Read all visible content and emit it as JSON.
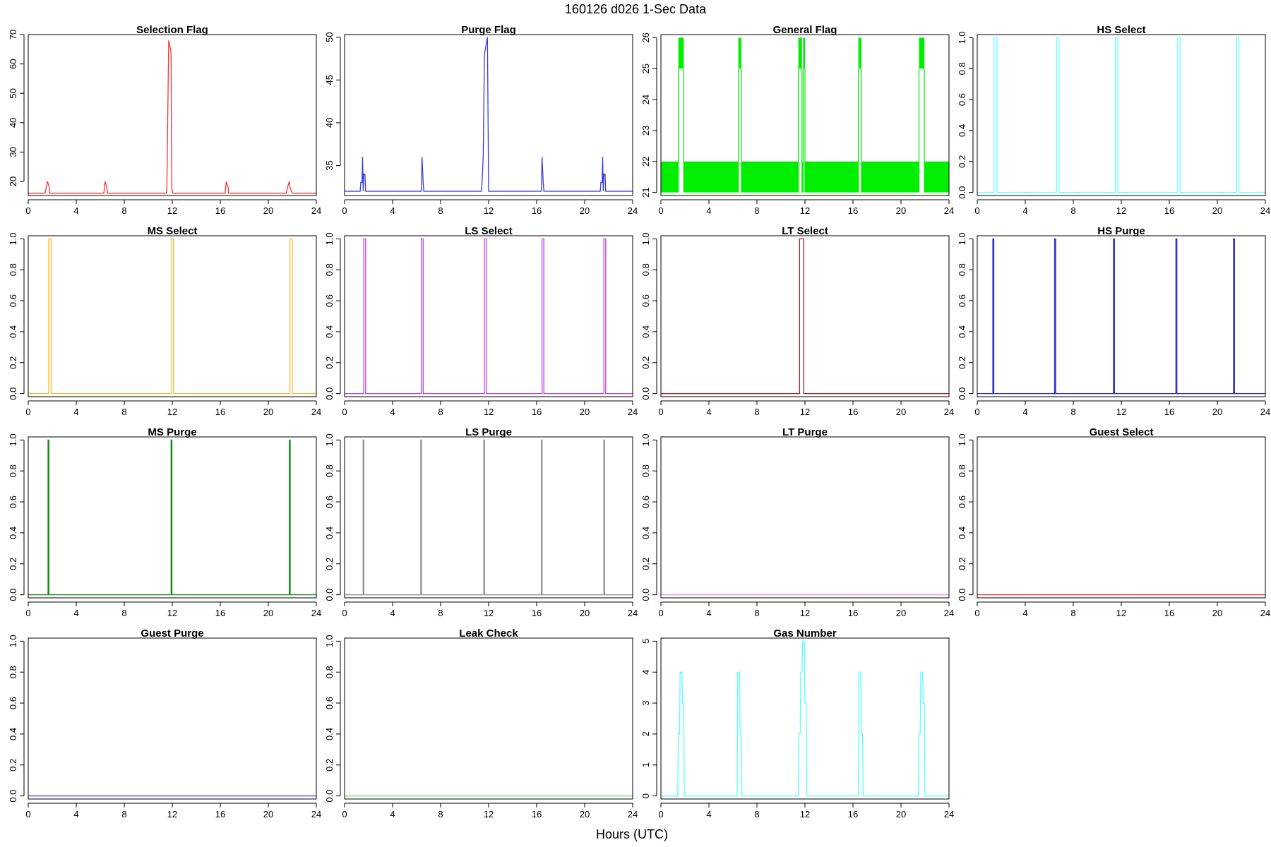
{
  "figure": {
    "title": "160126   d026   1-Sec Data",
    "xlabel": "Hours (UTC)",
    "x_ticks": [
      0,
      4,
      8,
      12,
      16,
      20,
      24
    ]
  },
  "chart_data": [
    {
      "name": "selection-flag",
      "type": "line",
      "title": "Selection Flag",
      "color": "#ff3030",
      "xlim": [
        0,
        24
      ],
      "ylim": [
        15.2,
        70
      ],
      "yticks": [
        20,
        30,
        40,
        50,
        60,
        70
      ],
      "x": [
        0,
        1.4,
        1.5,
        1.6,
        1.75,
        1.8,
        2.0,
        6.3,
        6.4,
        6.55,
        6.6,
        11.5,
        11.55,
        11.7,
        11.9,
        11.95,
        12.05,
        16.4,
        16.5,
        16.65,
        16.7,
        21.5,
        21.6,
        21.75,
        21.8,
        22.0,
        24
      ],
      "y": [
        16,
        16,
        18,
        20,
        18,
        16,
        16,
        16,
        20,
        18,
        16,
        16,
        18,
        68,
        64,
        18,
        16,
        16,
        20,
        18,
        16,
        16,
        18,
        20,
        18,
        16,
        16
      ]
    },
    {
      "name": "purge-flag",
      "type": "line",
      "title": "Purge Flag",
      "color": "#3a3ae0",
      "xlim": [
        0,
        24
      ],
      "ylim": [
        31.5,
        50.3
      ],
      "yticks": [
        35,
        40,
        45,
        50
      ],
      "x": [
        0,
        1.3,
        1.35,
        1.45,
        1.5,
        1.55,
        1.6,
        1.7,
        1.75,
        6.4,
        6.45,
        6.55,
        6.6,
        11.4,
        11.45,
        11.55,
        11.65,
        11.9,
        12.0,
        16.4,
        16.45,
        16.55,
        16.6,
        21.3,
        21.35,
        21.45,
        21.5,
        21.55,
        21.6,
        21.7,
        21.75,
        24
      ],
      "y": [
        32,
        32,
        33,
        33,
        36,
        32,
        34,
        34,
        32,
        32,
        36,
        33,
        32,
        32,
        33,
        36,
        48,
        50,
        32,
        32,
        36,
        33,
        32,
        32,
        33,
        33,
        36,
        32,
        34,
        34,
        32,
        32
      ]
    },
    {
      "name": "general-flag",
      "type": "line",
      "title": "General Flag",
      "color": "#00ee00",
      "xlim": [
        0,
        24
      ],
      "ylim": [
        20.9,
        26.1
      ],
      "yticks": [
        21,
        22,
        23,
        24,
        25,
        26
      ],
      "fill_low": 21,
      "fill_high": 22,
      "gaps": [
        [
          1.45,
          1.9
        ],
        [
          6.45,
          6.7
        ],
        [
          11.45,
          11.75
        ],
        [
          11.85,
          12.0
        ],
        [
          16.45,
          16.7
        ],
        [
          21.5,
          21.95
        ]
      ],
      "spikes": [
        [
          1.45,
          1.9,
          26,
          25
        ],
        [
          6.45,
          6.7,
          26,
          25
        ],
        [
          11.45,
          11.75,
          26,
          25
        ],
        [
          11.85,
          12.0,
          26,
          25
        ],
        [
          16.45,
          16.7,
          26,
          25
        ],
        [
          21.5,
          21.95,
          26,
          25
        ]
      ]
    },
    {
      "name": "hs-select",
      "type": "line",
      "title": "HS Select",
      "color": "#66ffff",
      "xlim": [
        0,
        24
      ],
      "ylim": [
        -0.02,
        1.02
      ],
      "yticks": [
        0.0,
        0.2,
        0.4,
        0.6,
        0.8,
        1.0
      ],
      "pulses": [
        [
          1.4,
          1.65
        ],
        [
          6.6,
          6.8
        ],
        [
          11.5,
          11.7
        ],
        [
          16.7,
          16.9
        ],
        [
          21.6,
          21.8
        ]
      ]
    },
    {
      "name": "ms-select",
      "type": "line",
      "title": "MS Select",
      "color": "#ffbb33",
      "xlim": [
        0,
        24
      ],
      "ylim": [
        -0.02,
        1.02
      ],
      "yticks": [
        0.0,
        0.2,
        0.4,
        0.6,
        0.8,
        1.0
      ],
      "pulses": [
        [
          1.7,
          1.9
        ],
        [
          11.95,
          12.1
        ],
        [
          21.8,
          22.0
        ]
      ]
    },
    {
      "name": "ls-select",
      "type": "line",
      "title": "LS Select",
      "color": "#bb44ee",
      "xlim": [
        0,
        24
      ],
      "ylim": [
        -0.02,
        1.02
      ],
      "yticks": [
        0.0,
        0.2,
        0.4,
        0.6,
        0.8,
        1.0
      ],
      "pulses": [
        [
          1.6,
          1.75
        ],
        [
          6.4,
          6.55
        ],
        [
          11.65,
          11.8
        ],
        [
          16.45,
          16.6
        ],
        [
          21.6,
          21.75
        ]
      ]
    },
    {
      "name": "lt-select",
      "type": "line",
      "title": "LT Select",
      "color": "#aa2222",
      "xlim": [
        0,
        24
      ],
      "ylim": [
        -0.02,
        1.02
      ],
      "yticks": [
        0.0,
        0.2,
        0.4,
        0.6,
        0.8,
        1.0
      ],
      "pulses": [
        [
          11.55,
          11.9
        ]
      ]
    },
    {
      "name": "hs-purge",
      "type": "line",
      "title": "HS Purge",
      "color": "#2a2ad0",
      "xlim": [
        0,
        24
      ],
      "ylim": [
        -0.02,
        1.02
      ],
      "yticks": [
        0.0,
        0.2,
        0.4,
        0.6,
        0.8,
        1.0
      ],
      "pulses": [
        [
          1.3,
          1.38
        ],
        [
          6.45,
          6.53
        ],
        [
          11.35,
          11.43
        ],
        [
          16.55,
          16.63
        ],
        [
          21.35,
          21.43
        ]
      ]
    },
    {
      "name": "ms-purge",
      "type": "line",
      "title": "MS Purge",
      "color": "#118811",
      "xlim": [
        0,
        24
      ],
      "ylim": [
        -0.02,
        1.02
      ],
      "yticks": [
        0.0,
        0.2,
        0.4,
        0.6,
        0.8,
        1.0
      ],
      "pulses": [
        [
          1.65,
          1.72
        ],
        [
          11.9,
          11.97
        ],
        [
          21.75,
          21.82
        ]
      ]
    },
    {
      "name": "ls-purge",
      "type": "line",
      "title": "LS Purge",
      "color": "#888888",
      "xlim": [
        0,
        24
      ],
      "ylim": [
        -0.02,
        1.02
      ],
      "yticks": [
        0.0,
        0.2,
        0.4,
        0.6,
        0.8,
        1.0
      ],
      "pulses": [
        [
          1.55,
          1.6
        ],
        [
          6.35,
          6.4
        ],
        [
          11.6,
          11.65
        ],
        [
          16.4,
          16.45
        ],
        [
          21.6,
          21.65
        ]
      ]
    },
    {
      "name": "lt-purge",
      "type": "line",
      "title": "LT Purge",
      "color": "#ee88ee",
      "xlim": [
        0,
        24
      ],
      "ylim": [
        -0.02,
        1.02
      ],
      "yticks": [
        0.0,
        0.2,
        0.4,
        0.6,
        0.8,
        1.0
      ],
      "pulses": []
    },
    {
      "name": "guest-select",
      "type": "line",
      "title": "Guest Select",
      "color": "#ee3333",
      "xlim": [
        0,
        24
      ],
      "ylim": [
        -0.02,
        1.02
      ],
      "yticks": [
        0.0,
        0.2,
        0.4,
        0.6,
        0.8,
        1.0
      ],
      "pulses": []
    },
    {
      "name": "guest-purge",
      "type": "line",
      "title": "Guest Purge",
      "color": "#4444cc",
      "xlim": [
        0,
        24
      ],
      "ylim": [
        -0.02,
        1.02
      ],
      "yticks": [
        0.0,
        0.2,
        0.4,
        0.6,
        0.8,
        1.0
      ],
      "pulses": []
    },
    {
      "name": "leak-check",
      "type": "line",
      "title": "Leak Check",
      "color": "#66dd66",
      "xlim": [
        0,
        24
      ],
      "ylim": [
        -0.02,
        1.02
      ],
      "yticks": [
        0.0,
        0.2,
        0.4,
        0.6,
        0.8,
        1.0
      ],
      "pulses": []
    },
    {
      "name": "gas-number",
      "type": "line",
      "title": "Gas Number",
      "color": "#55ffff",
      "xlim": [
        0,
        24
      ],
      "ylim": [
        -0.1,
        5.1
      ],
      "yticks": [
        0,
        1,
        2,
        3,
        4,
        5
      ],
      "x": [
        0,
        1.4,
        1.45,
        1.55,
        1.6,
        1.75,
        1.8,
        1.9,
        1.95,
        6.35,
        6.4,
        6.55,
        6.6,
        6.7,
        6.75,
        11.45,
        11.5,
        11.6,
        11.65,
        11.75,
        11.8,
        11.95,
        12.0,
        12.1,
        12.15,
        16.45,
        16.5,
        16.65,
        16.7,
        16.8,
        16.85,
        21.45,
        21.5,
        21.6,
        21.65,
        21.8,
        21.85,
        21.95,
        22.0,
        24
      ],
      "y": [
        0,
        0,
        2,
        2,
        4,
        4,
        3,
        3,
        0,
        0,
        4,
        4,
        2,
        2,
        0,
        0,
        2,
        2,
        4,
        4,
        5,
        5,
        3,
        3,
        0,
        0,
        4,
        4,
        2,
        2,
        0,
        0,
        2,
        2,
        4,
        4,
        3,
        3,
        0,
        0
      ]
    }
  ]
}
